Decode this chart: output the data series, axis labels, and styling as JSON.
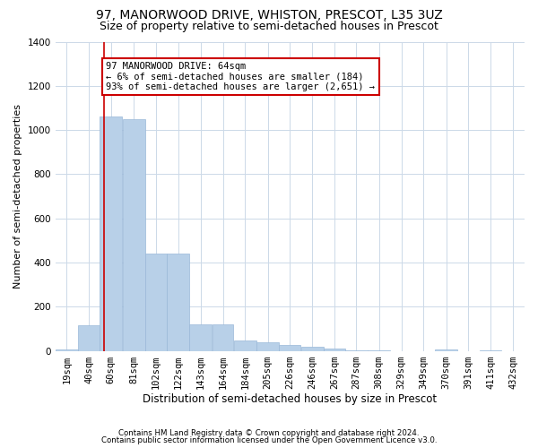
{
  "title1": "97, MANORWOOD DRIVE, WHISTON, PRESCOT, L35 3UZ",
  "title2": "Size of property relative to semi-detached houses in Prescot",
  "xlabel": "Distribution of semi-detached houses by size in Prescot",
  "ylabel": "Number of semi-detached properties",
  "footnote1": "Contains HM Land Registry data © Crown copyright and database right 2024.",
  "footnote2": "Contains public sector information licensed under the Open Government Licence v3.0.",
  "annotation_title": "97 MANORWOOD DRIVE: 64sqm",
  "annotation_line2": "← 6% of semi-detached houses are smaller (184)",
  "annotation_line3": "93% of semi-detached houses are larger (2,651) →",
  "property_size": 64,
  "bins": [
    19,
    40,
    60,
    81,
    102,
    122,
    143,
    164,
    184,
    205,
    226,
    246,
    267,
    287,
    308,
    329,
    349,
    370,
    391,
    411,
    432
  ],
  "values": [
    5,
    115,
    1060,
    1050,
    440,
    440,
    120,
    120,
    45,
    40,
    25,
    20,
    10,
    2,
    1,
    0,
    0,
    5,
    0,
    1,
    0
  ],
  "bar_color": "#b8d0e8",
  "bar_edge_color": "#9ab8d8",
  "vline_color": "#cc0000",
  "vline_x": 64,
  "annotation_box_color": "#cc0000",
  "annotation_bg": "white",
  "ylim": [
    0,
    1400
  ],
  "yticks": [
    0,
    200,
    400,
    600,
    800,
    1000,
    1200,
    1400
  ],
  "grid_color": "#ccd9e8",
  "title1_fontsize": 10,
  "title2_fontsize": 9,
  "xlabel_fontsize": 8.5,
  "ylabel_fontsize": 8,
  "tick_fontsize": 7.5,
  "annotation_fontsize": 7.5
}
